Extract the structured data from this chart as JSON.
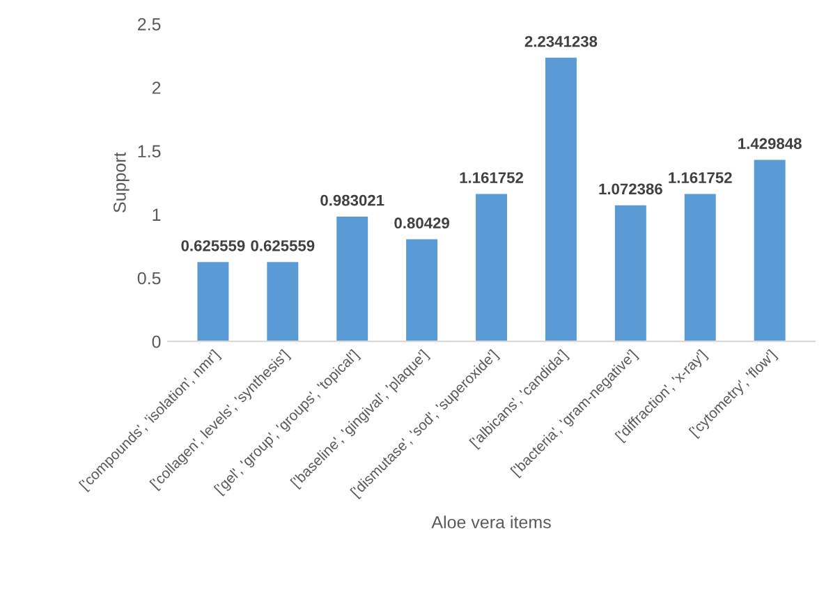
{
  "chart_data": {
    "type": "bar",
    "xlabel": "Aloe vera items",
    "ylabel": "Support",
    "categories": [
      "['compounds', 'isolation', nmr']",
      "['collagen', levels', 'synthesis']",
      "['gel', 'group', 'groups', 'topical']",
      "['baseline', 'gingival', 'plaque']",
      "['dismutase', 'sod', 'superoxide']",
      "['albicans', 'candida']",
      "['bacteria', 'gram-negative']",
      "['diffraction', 'x-ray']",
      "['cytometry', 'flow']"
    ],
    "values": [
      0.625559,
      0.625559,
      0.983021,
      0.80429,
      1.161752,
      2.2341238,
      1.072386,
      1.161752,
      1.429848
    ],
    "color": "#5b9bd5",
    "ylim": [
      0,
      2.5
    ],
    "yticks": [
      0,
      0.5,
      1,
      1.5,
      2,
      2.5
    ],
    "grid": false,
    "data_labels": true
  }
}
